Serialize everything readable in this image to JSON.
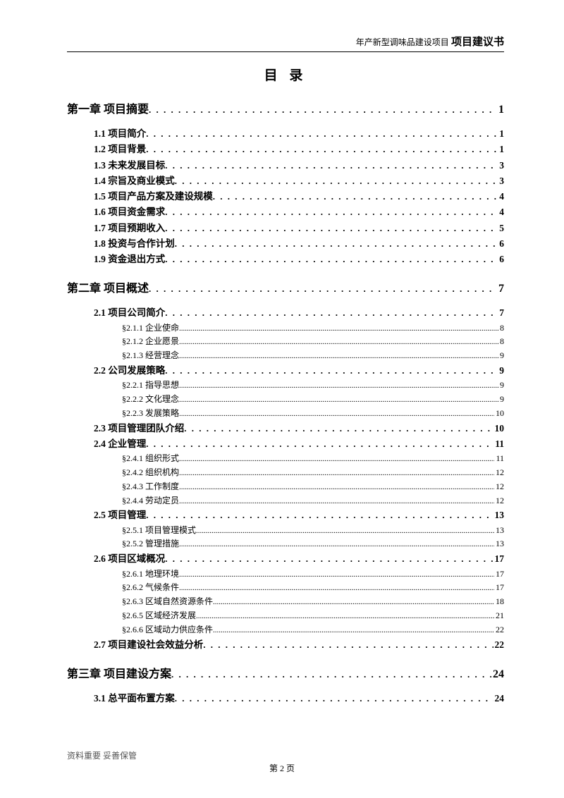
{
  "header": {
    "prefix": "年产新型调味品建设项目",
    "title": "项目建议书"
  },
  "page_title": "目 录",
  "footer": {
    "left": "资料重要  妥善保管",
    "center": "第 2 页"
  },
  "colors": {
    "text": "#000000",
    "bg": "#ffffff",
    "footer_muted": "#555555"
  },
  "fonts": {
    "body_pt": 13,
    "title_pt": 19,
    "chapter_pt": 16,
    "sub_pt": 12
  },
  "toc": [
    {
      "level": "chapter",
      "label": "第一章 项目摘要",
      "page": "1"
    },
    {
      "level": "section",
      "label": "1.1 项目简介",
      "page": "1"
    },
    {
      "level": "section",
      "label": "1.2 项目背景",
      "page": "1"
    },
    {
      "level": "section",
      "label": "1.3 未来发展目标",
      "page": "3"
    },
    {
      "level": "section",
      "label": "1.4 宗旨及商业模式",
      "page": "3"
    },
    {
      "level": "section",
      "label": "1.5 项目产品方案及建设规模",
      "page": "4"
    },
    {
      "level": "section",
      "label": "1.6 项目资金需求",
      "page": "4"
    },
    {
      "level": "section",
      "label": "1.7 项目预期收入",
      "page": "5"
    },
    {
      "level": "section",
      "label": "1.8 投资与合作计划",
      "page": "6"
    },
    {
      "level": "section",
      "label": "1.9 资金退出方式",
      "page": "6"
    },
    {
      "level": "chapter",
      "label": "第二章 项目概述",
      "page": "7"
    },
    {
      "level": "section",
      "label": "2.1 项目公司简介",
      "page": "7"
    },
    {
      "level": "sub",
      "label": "§2.1.1 企业使命",
      "page": "8"
    },
    {
      "level": "sub",
      "label": "§2.1.2 企业愿景",
      "page": "8"
    },
    {
      "level": "sub",
      "label": "§2.1.3 经营理念",
      "page": "9"
    },
    {
      "level": "section",
      "label": "2.2 公司发展策略",
      "page": "9"
    },
    {
      "level": "sub",
      "label": "§2.2.1 指导思想",
      "page": "9"
    },
    {
      "level": "sub",
      "label": "§2.2.2 文化理念",
      "page": "9"
    },
    {
      "level": "sub",
      "label": "§2.2.3 发展策略",
      "page": "10"
    },
    {
      "level": "section",
      "label": "2.3 项目管理团队介绍",
      "page": "10"
    },
    {
      "level": "section",
      "label": "2.4 企业管理",
      "page": "11"
    },
    {
      "level": "sub",
      "label": "§2.4.1 组织形式",
      "page": "11"
    },
    {
      "level": "sub",
      "label": "§2.4.2 组织机构",
      "page": "12"
    },
    {
      "level": "sub",
      "label": "§2.4.3 工作制度",
      "page": "12"
    },
    {
      "level": "sub",
      "label": "§2.4.4 劳动定员",
      "page": "12"
    },
    {
      "level": "section",
      "label": "2.5 项目管理",
      "page": "13"
    },
    {
      "level": "sub",
      "label": "§2.5.1 项目管理模式",
      "page": "13"
    },
    {
      "level": "sub",
      "label": "§2.5.2 管理措施",
      "page": "13"
    },
    {
      "level": "section",
      "label": "2.6 项目区域概况",
      "page": "17"
    },
    {
      "level": "sub",
      "label": "§2.6.1 地理环境",
      "page": "17"
    },
    {
      "level": "sub",
      "label": "§2.6.2 气候条件",
      "page": "17"
    },
    {
      "level": "sub",
      "label": "§2.6.3 区域自然资源条件",
      "page": "18"
    },
    {
      "level": "sub",
      "label": "§2.6.5 区域经济发展",
      "page": "21"
    },
    {
      "level": "sub",
      "label": "§2.6.6 区域动力供应条件",
      "page": "22"
    },
    {
      "level": "section",
      "label": "2.7 项目建设社会效益分析",
      "page": "22"
    },
    {
      "level": "chapter",
      "label": "第三章 项目建设方案",
      "page": "24"
    },
    {
      "level": "section",
      "label": "3.1 总平面布置方案",
      "page": "24"
    }
  ]
}
